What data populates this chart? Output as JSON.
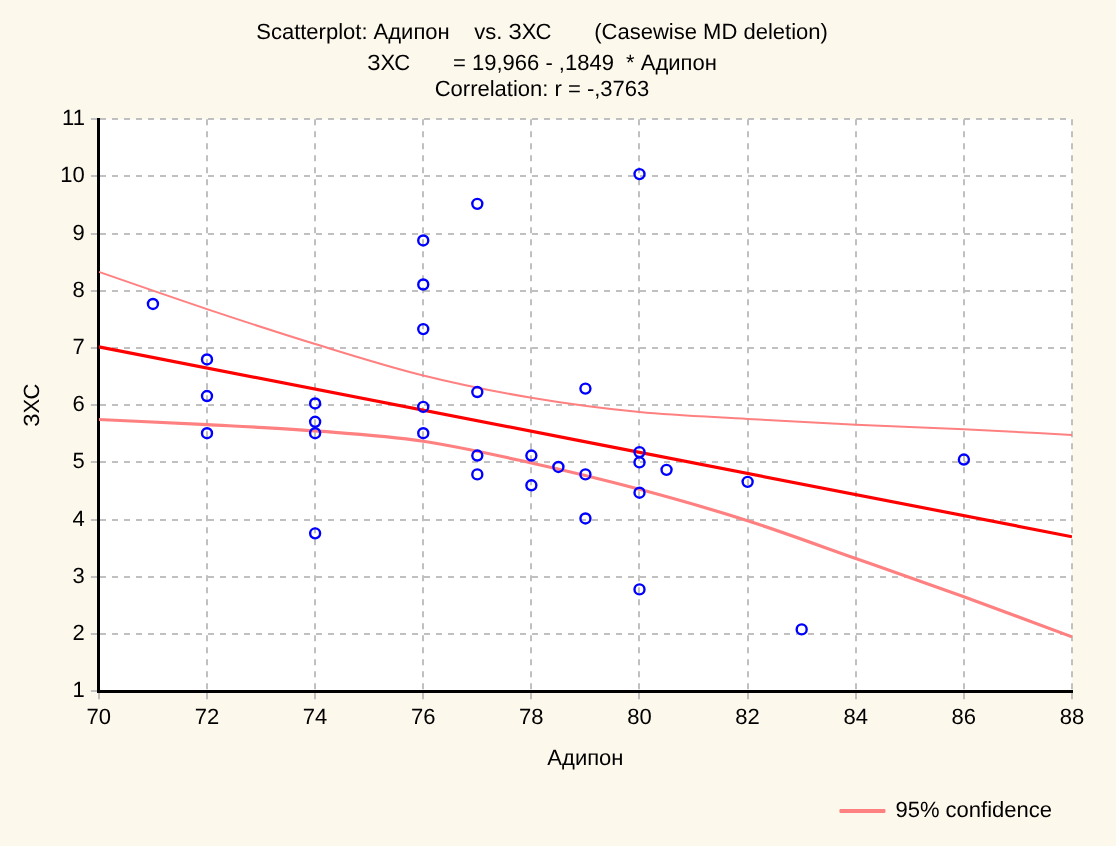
{
  "chart_data": {
    "type": "scatter",
    "title": "Scatterplot: Адипон    vs. ЗХС       (Casewise MD deletion)",
    "subtitle": "ЗХС       = 19,966 - ,1849  * Адипон",
    "annotations": [
      "Correlation: r = -,3763"
    ],
    "xlabel": "Адипон",
    "ylabel": "ЗХС",
    "xlim": [
      70,
      88
    ],
    "xticks": [
      70,
      72,
      74,
      76,
      78,
      80,
      82,
      84,
      86,
      88
    ],
    "ylim": [
      1,
      11
    ],
    "yticks": [
      1,
      2,
      3,
      4,
      5,
      6,
      7,
      8,
      9,
      10,
      11
    ],
    "grid": true,
    "legend": "bottom right",
    "marker": "circle",
    "line_style": "solid",
    "series": [
      {
        "color": "#0000ff",
        "x": [
          71,
          72,
          72,
          72,
          74,
          74,
          74,
          74,
          76,
          76,
          76,
          76,
          76,
          77,
          77,
          77,
          77,
          78,
          78,
          78.5,
          79,
          79,
          79,
          80,
          80,
          80,
          80,
          80,
          80.5,
          82,
          83,
          86
        ],
        "values": [
          7.77,
          6.8,
          6.16,
          5.51,
          6.03,
          5.71,
          5.51,
          3.76,
          8.88,
          8.11,
          7.33,
          5.97,
          5.51,
          9.52,
          6.23,
          5.12,
          4.79,
          5.12,
          4.6,
          4.92,
          6.29,
          4.79,
          4.02,
          10.04,
          5.18,
          5.0,
          4.47,
          2.78,
          4.87,
          4.66,
          2.08,
          5.05
        ]
      },
      {
        "type": "line",
        "marker": "none",
        "color": "#ff0000",
        "x": [
          70,
          88
        ],
        "values": [
          7.02,
          3.7
        ]
      },
      {
        "type": "line",
        "marker": "none",
        "name": "95% confidence",
        "color": "#ff8080",
        "x": [
          70,
          72,
          74,
          76,
          78,
          80,
          82,
          84,
          86,
          88
        ],
        "values": [
          8.33,
          7.68,
          7.07,
          6.52,
          6.13,
          5.88,
          5.76,
          5.66,
          5.58,
          5.48
        ]
      },
      {
        "type": "line",
        "marker": "none",
        "color": "#ff8080",
        "x": [
          70,
          72,
          74,
          76,
          78,
          80,
          82,
          84,
          86,
          88
        ],
        "values": [
          5.75,
          5.66,
          5.55,
          5.37,
          4.99,
          4.53,
          3.98,
          3.32,
          2.65,
          1.95
        ]
      }
    ]
  }
}
